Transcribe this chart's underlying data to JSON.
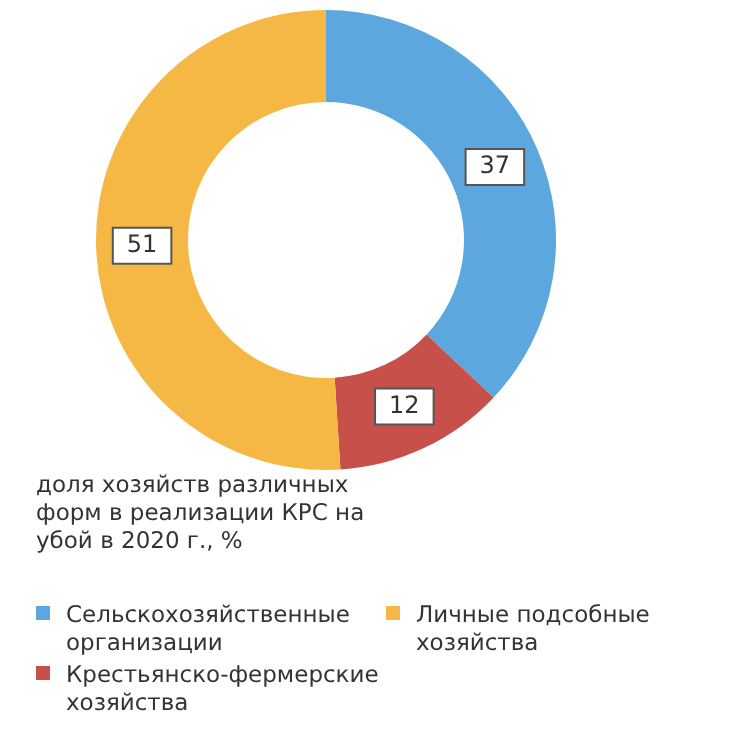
{
  "chart_data": {
    "type": "donut",
    "title": "доля хозяйств различных форм в реализации КРС на убой в 2020 г., %",
    "categories": [
      "Сельскохозяйственные организации",
      "Крестьянско-фермерские хозяйства",
      "Личные подсобные хозяйства"
    ],
    "values": [
      37,
      12,
      51
    ],
    "colors": [
      "#5ba7de",
      "#c8504a",
      "#f6b844"
    ],
    "data_labels": true,
    "legend": "bottom"
  }
}
